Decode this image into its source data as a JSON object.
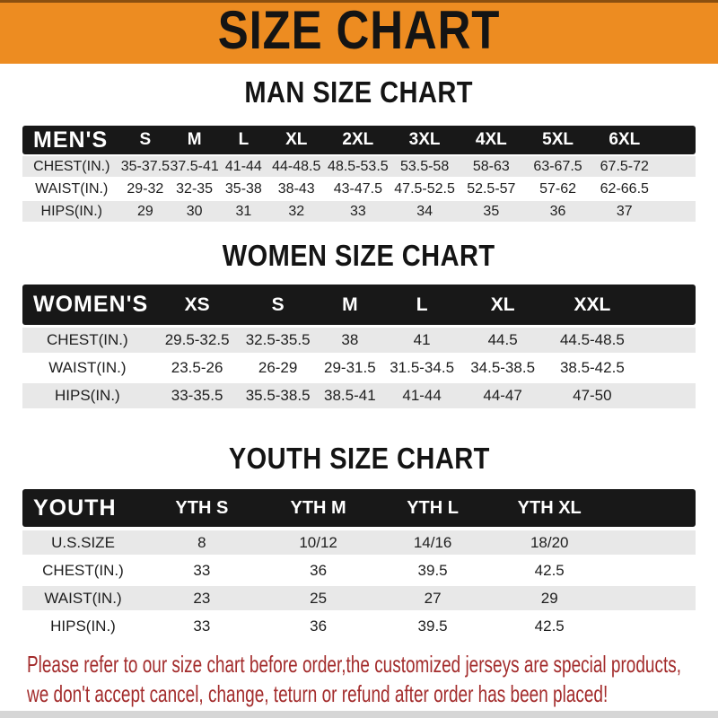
{
  "banner": {
    "title": "SIZE CHART"
  },
  "colors": {
    "banner_bg": "#ED8C21",
    "header_bg": "#181818",
    "row_gray": "#E8E8E8",
    "footer_red": "#A32C2C"
  },
  "sections": [
    {
      "title": "MAN SIZE CHART",
      "header_label": "MEN'S",
      "columns": [
        "S",
        "M",
        "L",
        "XL",
        "2XL",
        "3XL",
        "4XL",
        "5XL",
        "6XL"
      ],
      "rows": [
        {
          "label": "CHEST(IN.)",
          "values": [
            "35-37.5",
            "37.5-41",
            "41-44",
            "44-48.5",
            "48.5-53.5",
            "53.5-58",
            "58-63",
            "63-67.5",
            "67.5-72"
          ]
        },
        {
          "label": "WAIST(IN.)",
          "values": [
            "29-32",
            "32-35",
            "35-38",
            "38-43",
            "43-47.5",
            "47.5-52.5",
            "52.5-57",
            "57-62",
            "62-66.5"
          ]
        },
        {
          "label": "HIPS(IN.)",
          "values": [
            "29",
            "30",
            "31",
            "32",
            "33",
            "34",
            "35",
            "36",
            "37"
          ]
        }
      ]
    },
    {
      "title": "WOMEN SIZE CHART",
      "header_label": "WOMEN'S",
      "columns": [
        "XS",
        "S",
        "M",
        "L",
        "XL",
        "XXL"
      ],
      "rows": [
        {
          "label": "CHEST(IN.)",
          "values": [
            "29.5-32.5",
            "32.5-35.5",
            "38",
            "41",
            "44.5",
            "44.5-48.5"
          ]
        },
        {
          "label": "WAIST(IN.)",
          "values": [
            "23.5-26",
            "26-29",
            "29-31.5",
            "31.5-34.5",
            "34.5-38.5",
            "38.5-42.5"
          ]
        },
        {
          "label": "HIPS(IN.)",
          "values": [
            "33-35.5",
            "35.5-38.5",
            "38.5-41",
            "41-44",
            "44-47",
            "47-50"
          ]
        }
      ]
    },
    {
      "title": "YOUTH SIZE CHART",
      "header_label": "YOUTH",
      "columns": [
        "YTH S",
        "YTH M",
        "YTH L",
        "YTH XL"
      ],
      "rows": [
        {
          "label": "U.S.SIZE",
          "values": [
            "8",
            "10/12",
            "14/16",
            "18/20"
          ]
        },
        {
          "label": "CHEST(IN.)",
          "values": [
            "33",
            "36",
            "39.5",
            "42.5"
          ]
        },
        {
          "label": "WAIST(IN.)",
          "values": [
            "23",
            "25",
            "27",
            "29"
          ]
        },
        {
          "label": "HIPS(IN.)",
          "values": [
            "33",
            "36",
            "39.5",
            "42.5"
          ]
        }
      ]
    }
  ],
  "footer": {
    "line1": "Please refer to our size chart before order,the customized jerseys are special products,",
    "line2": "we don't accept cancel, change, teturn or refund after order has been placed!"
  }
}
